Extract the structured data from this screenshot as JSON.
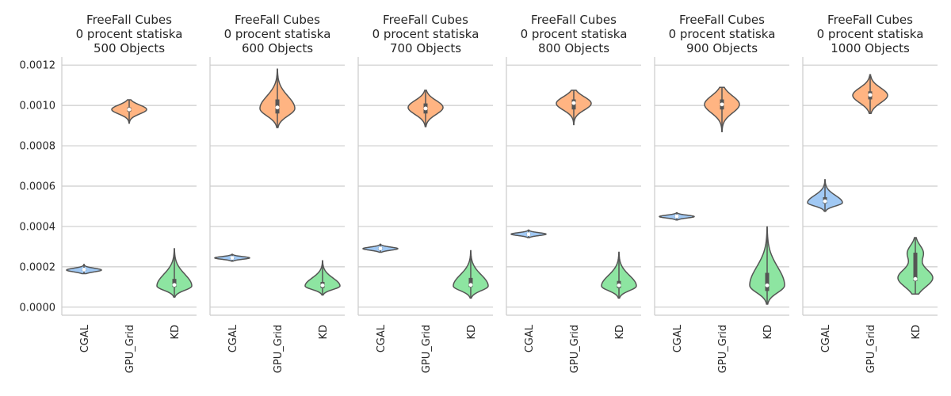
{
  "chart_data": {
    "type": "violin",
    "ylim": [
      -4e-05,
      0.00124
    ],
    "yticks": [
      0.0,
      0.0002,
      0.0004,
      0.0006,
      0.0008,
      0.001,
      0.0012
    ],
    "ytick_labels": [
      "0.0000",
      "0.0002",
      "0.0004",
      "0.0006",
      "0.0008",
      "0.0010",
      "0.0012"
    ],
    "grid": true,
    "categories": [
      "CGAL",
      "GPU_Grid",
      "KD"
    ],
    "colors": {
      "CGAL": "#a1c9f4",
      "GPU_Grid": "#ffb482",
      "KD": "#8de5a1"
    },
    "panels": [
      {
        "title": [
          "FreeFall Cubes",
          "0 procent statiska",
          "500 Objects"
        ],
        "violins": [
          {
            "category": "CGAL",
            "min": 0.000166,
            "max": 0.000212,
            "mode": 0.000184,
            "median": 0.000186,
            "q1": 0.00018,
            "q3": 0.00019,
            "shape": "normal"
          },
          {
            "category": "GPU_Grid",
            "min": 0.000912,
            "max": 0.001028,
            "mode": 0.00098,
            "median": 0.00098,
            "q1": 0.00097,
            "q3": 0.00099,
            "shape": "normal"
          },
          {
            "category": "KD",
            "min": 5e-05,
            "max": 0.00029,
            "mode": 0.000105,
            "median": 0.00011,
            "q1": 0.0001,
            "q3": 0.00014,
            "shape": "skew"
          }
        ]
      },
      {
        "title": [
          "FreeFall Cubes",
          "0 procent statiska",
          "600 Objects"
        ],
        "violins": [
          {
            "category": "CGAL",
            "min": 0.000228,
            "max": 0.000262,
            "mode": 0.000244,
            "median": 0.000244,
            "q1": 0.000239,
            "q3": 0.000248,
            "shape": "normal"
          },
          {
            "category": "GPU_Grid",
            "min": 0.00089,
            "max": 0.00118,
            "mode": 0.000985,
            "median": 0.00099,
            "q1": 0.00096,
            "q3": 0.00103,
            "shape": "skew"
          },
          {
            "category": "KD",
            "min": 6e-05,
            "max": 0.00023,
            "mode": 0.000105,
            "median": 0.000108,
            "q1": 9.5e-05,
            "q3": 0.000125,
            "shape": "skew"
          }
        ]
      },
      {
        "title": [
          "FreeFall Cubes",
          "0 procent statiska",
          "700 Objects"
        ],
        "violins": [
          {
            "category": "CGAL",
            "min": 0.000272,
            "max": 0.000312,
            "mode": 0.00029,
            "median": 0.000291,
            "q1": 0.000285,
            "q3": 0.000296,
            "shape": "normal"
          },
          {
            "category": "GPU_Grid",
            "min": 0.000895,
            "max": 0.001075,
            "mode": 0.00099,
            "median": 0.000985,
            "q1": 0.00096,
            "q3": 0.00101,
            "shape": "normal"
          },
          {
            "category": "KD",
            "min": 4.5e-05,
            "max": 0.00028,
            "mode": 0.000105,
            "median": 0.00011,
            "q1": 0.0001,
            "q3": 0.000145,
            "shape": "skew"
          }
        ]
      },
      {
        "title": [
          "FreeFall Cubes",
          "0 procent statiska",
          "800 Objects"
        ],
        "violins": [
          {
            "category": "CGAL",
            "min": 0.000345,
            "max": 0.000382,
            "mode": 0.000362,
            "median": 0.000362,
            "q1": 0.000357,
            "q3": 0.000367,
            "shape": "normal"
          },
          {
            "category": "GPU_Grid",
            "min": 0.000905,
            "max": 0.001075,
            "mode": 0.00101,
            "median": 0.001012,
            "q1": 0.00098,
            "q3": 0.00103,
            "shape": "normal"
          },
          {
            "category": "KD",
            "min": 4.5e-05,
            "max": 0.000272,
            "mode": 0.000105,
            "median": 0.000108,
            "q1": 9.5e-05,
            "q3": 0.00013,
            "shape": "skew"
          }
        ]
      },
      {
        "title": [
          "FreeFall Cubes",
          "0 procent statiska",
          "900 Objects"
        ],
        "violins": [
          {
            "category": "CGAL",
            "min": 0.000432,
            "max": 0.000468,
            "mode": 0.000449,
            "median": 0.00045,
            "q1": 0.000445,
            "q3": 0.000455,
            "shape": "normal"
          },
          {
            "category": "GPU_Grid",
            "min": 0.00087,
            "max": 0.00109,
            "mode": 0.001005,
            "median": 0.001005,
            "q1": 0.00098,
            "q3": 0.00103,
            "shape": "normal"
          },
          {
            "category": "KD",
            "min": 1.5e-05,
            "max": 0.000398,
            "mode": 0.000108,
            "median": 0.000108,
            "q1": 8e-05,
            "q3": 0.00017,
            "shape": "skew"
          }
        ]
      },
      {
        "title": [
          "FreeFall Cubes",
          "0 procent statiska",
          "1000 Objects"
        ],
        "violins": [
          {
            "category": "CGAL",
            "min": 0.000475,
            "max": 0.000632,
            "mode": 0.000518,
            "median": 0.000525,
            "q1": 0.000515,
            "q3": 0.000545,
            "shape": "skew"
          },
          {
            "category": "GPU_Grid",
            "min": 0.00096,
            "max": 0.001152,
            "mode": 0.00105,
            "median": 0.001052,
            "q1": 0.00103,
            "q3": 0.00107,
            "shape": "normal"
          },
          {
            "category": "KD",
            "min": 6.5e-05,
            "max": 0.000345,
            "mode": 0.000145,
            "median": 0.00014,
            "q1": 0.00013,
            "q3": 0.00027,
            "shape": "bimodal"
          }
        ]
      }
    ]
  }
}
